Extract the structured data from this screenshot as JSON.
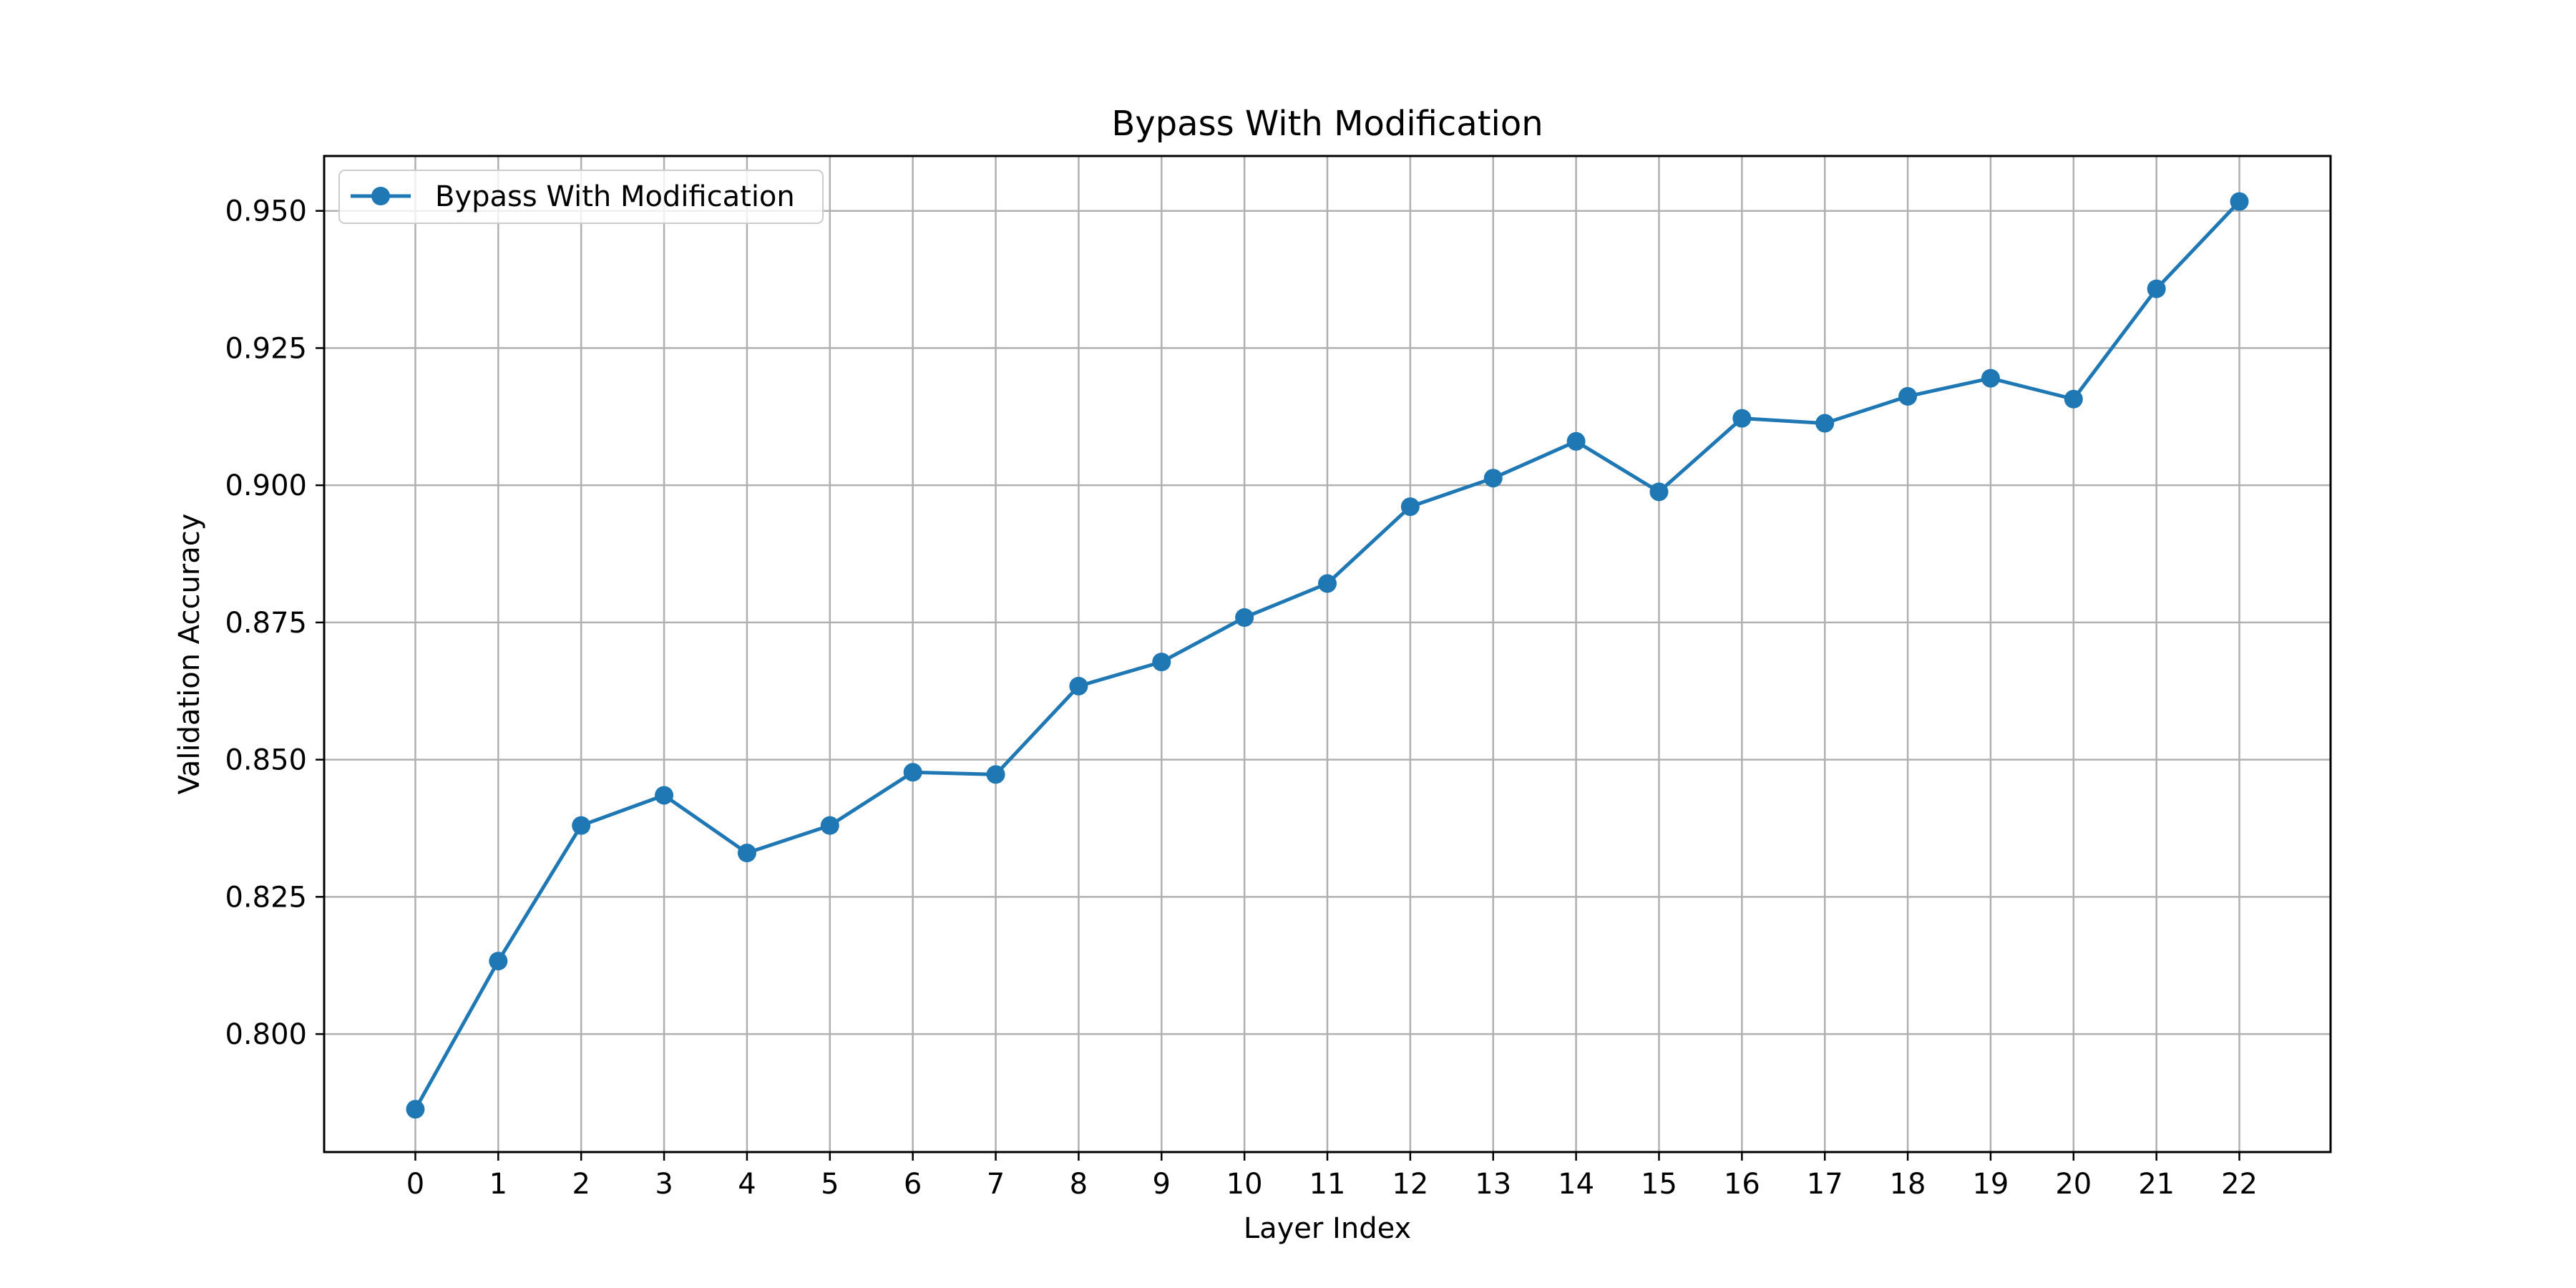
{
  "chart_data": {
    "type": "line",
    "title": "Bypass With Modification",
    "xlabel": "Layer Index",
    "ylabel": "Validation Accuracy",
    "x": [
      0,
      1,
      2,
      3,
      4,
      5,
      6,
      7,
      8,
      9,
      10,
      11,
      12,
      13,
      14,
      15,
      16,
      17,
      18,
      19,
      20,
      21,
      22
    ],
    "x_tick_labels": [
      "0",
      "1",
      "2",
      "3",
      "4",
      "5",
      "6",
      "7",
      "8",
      "9",
      "10",
      "11",
      "12",
      "13",
      "14",
      "15",
      "16",
      "17",
      "18",
      "19",
      "20",
      "21",
      "22"
    ],
    "y_ticks": [
      0.8,
      0.825,
      0.85,
      0.875,
      0.9,
      0.925,
      0.95
    ],
    "y_tick_labels": [
      "0.800",
      "0.825",
      "0.850",
      "0.875",
      "0.900",
      "0.925",
      "0.950"
    ],
    "xlim": [
      -1.1,
      23.1
    ],
    "ylim": [
      0.7785,
      0.96
    ],
    "grid": true,
    "legend_position": "top-left",
    "series": [
      {
        "name": "Bypass With Modification",
        "color": "#1f77b4",
        "marker": "circle",
        "values": [
          0.7863,
          0.8133,
          0.838,
          0.8435,
          0.833,
          0.838,
          0.8477,
          0.8473,
          0.8634,
          0.8678,
          0.8759,
          0.8821,
          0.8961,
          0.9013,
          0.908,
          0.8988,
          0.9122,
          0.9113,
          0.9162,
          0.9195,
          0.9157,
          0.9358,
          0.9517
        ]
      }
    ]
  }
}
